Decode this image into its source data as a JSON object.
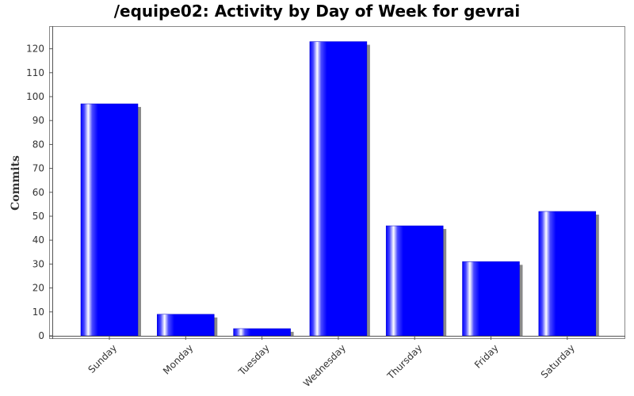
{
  "colors": {
    "bar": "#0000ff",
    "shadow": "#8a8a8a",
    "frame": "#888888",
    "axis": "#555555"
  },
  "chart_data": {
    "type": "bar",
    "title": "/equipe02: Activity by Day of Week for gevrai",
    "xlabel": "",
    "ylabel": "Commits",
    "categories": [
      "Sunday",
      "Monday",
      "Tuesday",
      "Wednesday",
      "Thursday",
      "Friday",
      "Saturday"
    ],
    "values": [
      97,
      9,
      3,
      123,
      46,
      31,
      52
    ],
    "ylim": [
      0,
      129
    ],
    "yticks": [
      0,
      10,
      20,
      30,
      40,
      50,
      60,
      70,
      80,
      90,
      100,
      110,
      120
    ],
    "grid": false,
    "legend": "none"
  }
}
